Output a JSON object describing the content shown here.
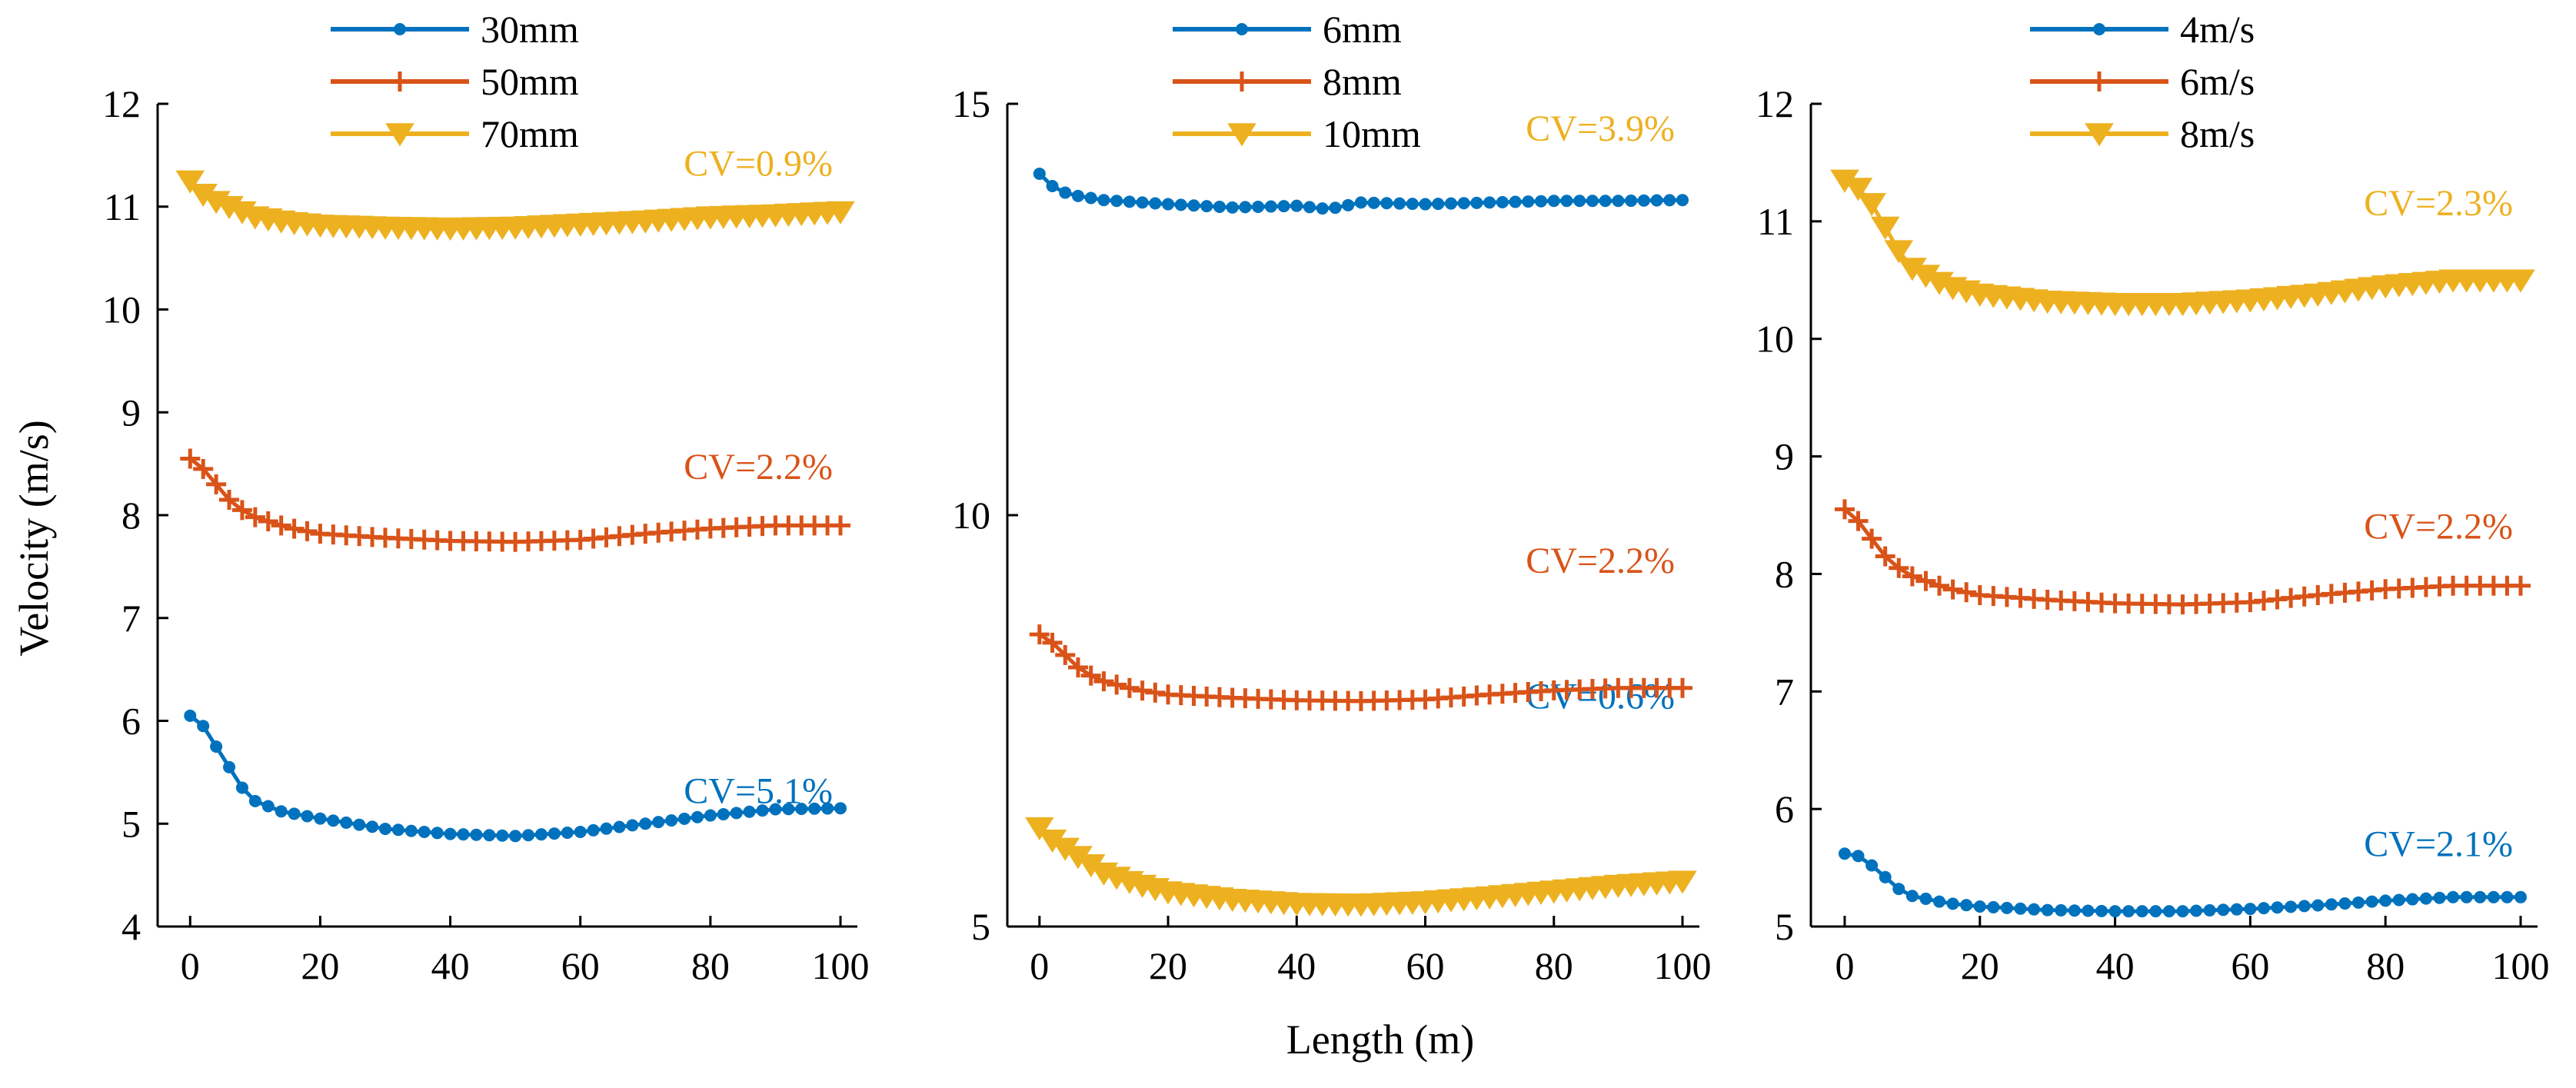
{
  "chart_data": {
    "type": "line",
    "shared_xlabel": "Length (m)",
    "shared_ylabel": "Velocity (m/s)",
    "colors": {
      "blue": "#0072BD",
      "orange": "#D95319",
      "yellow": "#EDB120"
    },
    "panels": [
      {
        "id": "a",
        "xlim": [
          -5,
          100
        ],
        "ylim": [
          4,
          12
        ],
        "xticks": [
          0,
          20,
          40,
          60,
          80,
          100
        ],
        "yticks": [
          4,
          5,
          6,
          7,
          8,
          9,
          10,
          11,
          12
        ],
        "series": [
          {
            "name": "30mm",
            "color": "#0072BD",
            "marker": "dot",
            "cv": "CV=5.1%",
            "profile": [
              [
                0,
                6.05
              ],
              [
                2,
                5.95
              ],
              [
                4,
                5.75
              ],
              [
                6,
                5.55
              ],
              [
                8,
                5.35
              ],
              [
                10,
                5.22
              ],
              [
                14,
                5.12
              ],
              [
                20,
                5.05
              ],
              [
                30,
                4.95
              ],
              [
                40,
                4.9
              ],
              [
                50,
                4.88
              ],
              [
                60,
                4.92
              ],
              [
                70,
                5.0
              ],
              [
                80,
                5.08
              ],
              [
                90,
                5.14
              ],
              [
                100,
                5.15
              ]
            ]
          },
          {
            "name": "50mm",
            "color": "#D95319",
            "marker": "plus",
            "cv": "CV=2.2%",
            "profile": [
              [
                0,
                8.55
              ],
              [
                2,
                8.45
              ],
              [
                4,
                8.3
              ],
              [
                6,
                8.15
              ],
              [
                8,
                8.05
              ],
              [
                10,
                7.98
              ],
              [
                15,
                7.88
              ],
              [
                20,
                7.82
              ],
              [
                30,
                7.78
              ],
              [
                40,
                7.75
              ],
              [
                50,
                7.74
              ],
              [
                60,
                7.76
              ],
              [
                70,
                7.82
              ],
              [
                80,
                7.87
              ],
              [
                90,
                7.9
              ],
              [
                100,
                7.9
              ]
            ]
          },
          {
            "name": "70mm",
            "color": "#EDB120",
            "marker": "triangle",
            "cv": "CV=0.9%",
            "profile": [
              [
                0,
                11.25
              ],
              [
                2,
                11.12
              ],
              [
                4,
                11.05
              ],
              [
                6,
                11.0
              ],
              [
                8,
                10.95
              ],
              [
                10,
                10.9
              ],
              [
                15,
                10.85
              ],
              [
                20,
                10.82
              ],
              [
                30,
                10.8
              ],
              [
                40,
                10.79
              ],
              [
                50,
                10.8
              ],
              [
                60,
                10.83
              ],
              [
                70,
                10.86
              ],
              [
                80,
                10.9
              ],
              [
                90,
                10.92
              ],
              [
                100,
                10.95
              ]
            ]
          }
        ]
      },
      {
        "id": "b",
        "xlim": [
          -5,
          100
        ],
        "ylim": [
          5,
          15
        ],
        "xticks": [
          0,
          20,
          40,
          60,
          80,
          100
        ],
        "yticks": [
          5,
          10,
          15
        ],
        "series": [
          {
            "name": "6mm",
            "color": "#0072BD",
            "marker": "dot",
            "cv": "CV=0.6%",
            "profile": [
              [
                0,
                14.15
              ],
              [
                2,
                14.0
              ],
              [
                4,
                13.92
              ],
              [
                6,
                13.88
              ],
              [
                10,
                13.83
              ],
              [
                20,
                13.78
              ],
              [
                30,
                13.74
              ],
              [
                40,
                13.76
              ],
              [
                45,
                13.72
              ],
              [
                50,
                13.8
              ],
              [
                60,
                13.78
              ],
              [
                70,
                13.8
              ],
              [
                80,
                13.82
              ],
              [
                90,
                13.82
              ],
              [
                100,
                13.83
              ]
            ]
          },
          {
            "name": "8mm",
            "color": "#D95319",
            "marker": "plus",
            "cv": "CV=2.2%",
            "profile": [
              [
                0,
                8.55
              ],
              [
                2,
                8.45
              ],
              [
                4,
                8.3
              ],
              [
                6,
                8.15
              ],
              [
                8,
                8.05
              ],
              [
                10,
                7.98
              ],
              [
                15,
                7.88
              ],
              [
                20,
                7.82
              ],
              [
                30,
                7.78
              ],
              [
                40,
                7.75
              ],
              [
                50,
                7.74
              ],
              [
                60,
                7.76
              ],
              [
                70,
                7.82
              ],
              [
                80,
                7.87
              ],
              [
                90,
                7.9
              ],
              [
                100,
                7.9
              ]
            ]
          },
          {
            "name": "10mm",
            "color": "#EDB120",
            "marker": "triangle",
            "cv": "CV=3.9%",
            "profile": [
              [
                0,
                6.2
              ],
              [
                2,
                6.05
              ],
              [
                4,
                5.95
              ],
              [
                6,
                5.85
              ],
              [
                8,
                5.75
              ],
              [
                10,
                5.65
              ],
              [
                15,
                5.52
              ],
              [
                20,
                5.42
              ],
              [
                30,
                5.33
              ],
              [
                40,
                5.28
              ],
              [
                50,
                5.27
              ],
              [
                60,
                5.3
              ],
              [
                70,
                5.36
              ],
              [
                80,
                5.43
              ],
              [
                90,
                5.5
              ],
              [
                100,
                5.55
              ]
            ]
          }
        ]
      },
      {
        "id": "c",
        "xlim": [
          -5,
          100
        ],
        "ylim": [
          5,
          12
        ],
        "xticks": [
          0,
          20,
          40,
          60,
          80,
          100
        ],
        "yticks": [
          5,
          6,
          7,
          8,
          9,
          10,
          11,
          12
        ],
        "series": [
          {
            "name": "4m/s",
            "color": "#0072BD",
            "marker": "dot",
            "cv": "CV=2.1%",
            "profile": [
              [
                0,
                5.62
              ],
              [
                2,
                5.6
              ],
              [
                4,
                5.52
              ],
              [
                6,
                5.42
              ],
              [
                8,
                5.32
              ],
              [
                10,
                5.26
              ],
              [
                15,
                5.2
              ],
              [
                20,
                5.17
              ],
              [
                30,
                5.14
              ],
              [
                40,
                5.13
              ],
              [
                50,
                5.13
              ],
              [
                60,
                5.15
              ],
              [
                70,
                5.18
              ],
              [
                80,
                5.22
              ],
              [
                90,
                5.25
              ],
              [
                100,
                5.25
              ]
            ]
          },
          {
            "name": "6m/s",
            "color": "#D95319",
            "marker": "plus",
            "cv": "CV=2.2%",
            "profile": [
              [
                0,
                8.55
              ],
              [
                2,
                8.45
              ],
              [
                4,
                8.3
              ],
              [
                6,
                8.15
              ],
              [
                8,
                8.05
              ],
              [
                10,
                7.98
              ],
              [
                15,
                7.88
              ],
              [
                20,
                7.82
              ],
              [
                30,
                7.78
              ],
              [
                40,
                7.75
              ],
              [
                50,
                7.74
              ],
              [
                60,
                7.76
              ],
              [
                70,
                7.82
              ],
              [
                80,
                7.87
              ],
              [
                90,
                7.9
              ],
              [
                100,
                7.9
              ]
            ]
          },
          {
            "name": "8m/s",
            "color": "#EDB120",
            "marker": "triangle",
            "cv": "CV=2.3%",
            "profile": [
              [
                0,
                11.35
              ],
              [
                2,
                11.28
              ],
              [
                4,
                11.15
              ],
              [
                6,
                10.95
              ],
              [
                8,
                10.75
              ],
              [
                10,
                10.6
              ],
              [
                15,
                10.45
              ],
              [
                20,
                10.38
              ],
              [
                30,
                10.32
              ],
              [
                40,
                10.3
              ],
              [
                50,
                10.3
              ],
              [
                60,
                10.33
              ],
              [
                70,
                10.38
              ],
              [
                80,
                10.45
              ],
              [
                90,
                10.5
              ],
              [
                100,
                10.5
              ]
            ]
          }
        ]
      }
    ]
  }
}
